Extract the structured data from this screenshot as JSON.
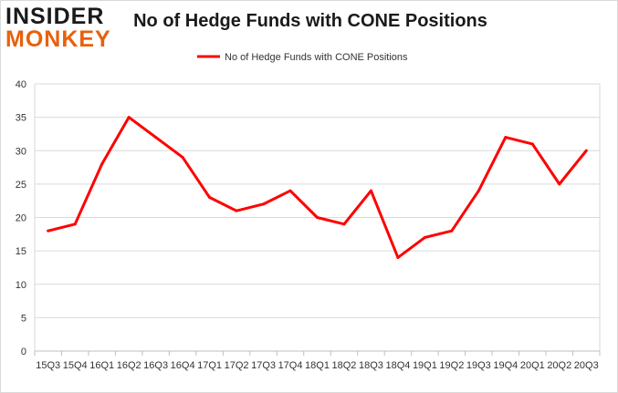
{
  "logo": {
    "line1": "INSIDER",
    "line2": "MONKEY"
  },
  "chart_data": {
    "type": "line",
    "title": "No of Hedge Funds with CONE Positions",
    "xlabel": "",
    "ylabel": "",
    "categories": [
      "15Q3",
      "15Q4",
      "16Q1",
      "16Q2",
      "16Q3",
      "16Q4",
      "17Q1",
      "17Q2",
      "17Q3",
      "17Q4",
      "18Q1",
      "18Q2",
      "18Q3",
      "18Q4",
      "19Q1",
      "19Q2",
      "19Q3",
      "19Q4",
      "20Q1",
      "20Q2",
      "20Q3"
    ],
    "series": [
      {
        "name": "No of Hedge Funds with CONE Positions",
        "color": "#ff0000",
        "values": [
          18,
          19,
          28,
          35,
          32,
          29,
          23,
          21,
          22,
          24,
          20,
          19,
          24,
          14,
          17,
          18,
          24,
          32,
          31,
          25,
          30
        ]
      }
    ],
    "ylim": [
      0,
      40
    ],
    "yticks": [
      0,
      5,
      10,
      15,
      20,
      25,
      30,
      35,
      40
    ],
    "grid": true,
    "legend": "top-center"
  }
}
